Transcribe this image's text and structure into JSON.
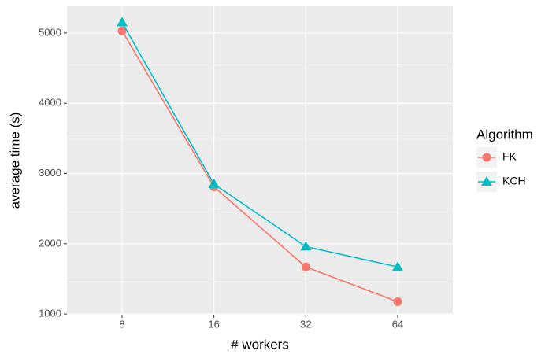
{
  "chart_data": {
    "type": "line",
    "x_label": "# workers",
    "y_label": "average time (s)",
    "categories": [
      "8",
      "16",
      "32",
      "64"
    ],
    "series": [
      {
        "name": "FK",
        "color": "#F8766D",
        "marker": "circle",
        "values": [
          5030,
          2810,
          1670,
          1175
        ]
      },
      {
        "name": "KCH",
        "color": "#00BFC4",
        "marker": "triangle",
        "values": [
          5150,
          2850,
          1960,
          1670
        ]
      }
    ],
    "ylim": [
      990,
      5380
    ],
    "yticks": [
      1000,
      2000,
      3000,
      4000,
      5000
    ],
    "yminorticks": [
      1500,
      2500,
      3500,
      4500
    ],
    "grid": true,
    "legend_title": "Algorithm",
    "legend_position": "right"
  }
}
